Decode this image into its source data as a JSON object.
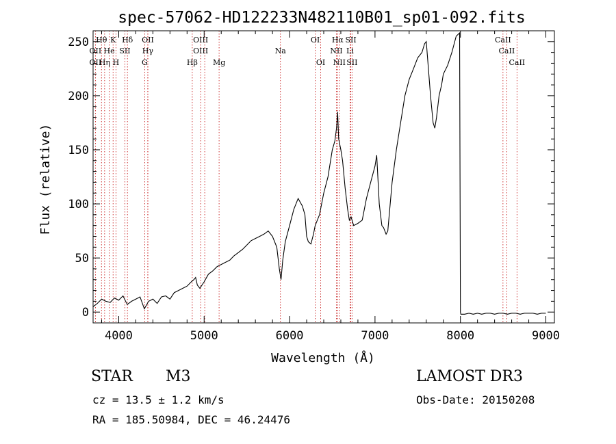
{
  "chart_data": {
    "type": "line",
    "title": "spec-57062-HD122233N482110B01_sp01-092.fits",
    "xlabel": "Wavelength (Å)",
    "ylabel": "Flux (relative)",
    "xlim": [
      3700,
      9100
    ],
    "ylim": [
      -10,
      260
    ],
    "xticks": [
      4000,
      5000,
      6000,
      7000,
      8000,
      9000
    ],
    "yticks": [
      0,
      50,
      100,
      150,
      200,
      250
    ],
    "series": [
      {
        "name": "Spectrum",
        "x": [
          3700,
          3750,
          3800,
          3850,
          3900,
          3950,
          4000,
          4050,
          4100,
          4150,
          4200,
          4250,
          4300,
          4350,
          4400,
          4450,
          4500,
          4550,
          4600,
          4650,
          4700,
          4750,
          4800,
          4850,
          4880,
          4900,
          4920,
          4950,
          5000,
          5050,
          5100,
          5150,
          5200,
          5250,
          5300,
          5350,
          5400,
          5450,
          5500,
          5550,
          5600,
          5650,
          5700,
          5750,
          5800,
          5850,
          5880,
          5900,
          5920,
          5950,
          6000,
          6050,
          6100,
          6150,
          6180,
          6200,
          6220,
          6250,
          6280,
          6300,
          6350,
          6400,
          6450,
          6500,
          6530,
          6550,
          6563,
          6575,
          6600,
          6620,
          6650,
          6680,
          6700,
          6720,
          6750,
          6800,
          6850,
          6900,
          6950,
          7000,
          7020,
          7050,
          7080,
          7100,
          7130,
          7150,
          7200,
          7250,
          7300,
          7350,
          7400,
          7450,
          7500,
          7550,
          7580,
          7600,
          7620,
          7650,
          7680,
          7700,
          7720,
          7750,
          7780,
          7800,
          7850,
          7900,
          7950,
          7990,
          8000,
          8005,
          8050,
          8100,
          8150,
          8200,
          8250,
          8300,
          8350,
          8400,
          8450,
          8500,
          8550,
          8600,
          8650,
          8700,
          8750,
          8800,
          8850,
          8900,
          8950,
          9000
        ],
        "y": [
          5,
          8,
          12,
          10,
          9,
          13,
          11,
          15,
          7,
          10,
          12,
          14,
          3,
          10,
          12,
          8,
          14,
          15,
          12,
          18,
          20,
          22,
          24,
          28,
          30,
          32,
          25,
          22,
          28,
          35,
          38,
          42,
          44,
          46,
          48,
          52,
          55,
          58,
          62,
          66,
          68,
          70,
          72,
          75,
          70,
          60,
          40,
          30,
          48,
          65,
          80,
          95,
          105,
          98,
          90,
          70,
          65,
          63,
          72,
          80,
          90,
          110,
          125,
          150,
          158,
          170,
          185,
          160,
          150,
          140,
          115,
          95,
          85,
          88,
          80,
          82,
          85,
          105,
          120,
          135,
          145,
          100,
          80,
          78,
          72,
          75,
          120,
          150,
          175,
          200,
          215,
          225,
          235,
          240,
          248,
          250,
          230,
          200,
          175,
          170,
          180,
          200,
          210,
          220,
          228,
          240,
          255,
          258,
          0,
          -2,
          -2,
          -1,
          -2,
          -1,
          -2,
          -1,
          -1,
          -2,
          -1,
          -1,
          -2,
          -1,
          -1,
          -2,
          -1,
          -1,
          -1,
          -2,
          -1,
          -1
        ]
      }
    ],
    "line_markers": [
      {
        "label": "Hθ",
        "x": 3798,
        "row": 0
      },
      {
        "label": "K",
        "x": 3934,
        "row": 0
      },
      {
        "label": "Hδ",
        "x": 4102,
        "row": 0
      },
      {
        "label": "OII",
        "x": 4341,
        "row": 0
      },
      {
        "label": "OIII",
        "x": 4959,
        "row": 0
      },
      {
        "label": "OI",
        "x": 6300,
        "row": 0
      },
      {
        "label": "Hα",
        "x": 6563,
        "row": 0
      },
      {
        "label": "SII",
        "x": 6717,
        "row": 0
      },
      {
        "label": "CaII",
        "x": 8498,
        "row": 0
      },
      {
        "label": "OII",
        "x": 3727,
        "row": 1
      },
      {
        "label": "He",
        "x": 3889,
        "row": 1
      },
      {
        "label": "SII",
        "x": 4072,
        "row": 1
      },
      {
        "label": "Hγ",
        "x": 4340,
        "row": 1
      },
      {
        "label": "OIII",
        "x": 4959,
        "row": 1
      },
      {
        "label": "Na",
        "x": 5893,
        "row": 1
      },
      {
        "label": "NII",
        "x": 6548,
        "row": 1
      },
      {
        "label": "Li",
        "x": 6708,
        "row": 1
      },
      {
        "label": "CaII",
        "x": 8542,
        "row": 1
      },
      {
        "label": "OII",
        "x": 3727,
        "row": 2
      },
      {
        "label": "Hη",
        "x": 3835,
        "row": 2
      },
      {
        "label": "H",
        "x": 3968,
        "row": 2
      },
      {
        "label": "G",
        "x": 4304,
        "row": 2
      },
      {
        "label": "Hβ",
        "x": 4861,
        "row": 2
      },
      {
        "label": "Mg",
        "x": 5175,
        "row": 2
      },
      {
        "label": "OI",
        "x": 6364,
        "row": 2
      },
      {
        "label": "NII",
        "x": 6583,
        "row": 2
      },
      {
        "label": "SII",
        "x": 6731,
        "row": 2
      },
      {
        "label": "CaII",
        "x": 8662,
        "row": 2
      }
    ],
    "marker_lines": [
      3727,
      3798,
      3835,
      3889,
      3934,
      3968,
      4072,
      4102,
      4304,
      4340,
      4341,
      4861,
      4959,
      5007,
      5175,
      5893,
      6300,
      6364,
      6548,
      6563,
      6583,
      6708,
      6717,
      6731,
      8498,
      8542,
      8662
    ],
    "colors": {
      "spectrum": "#000000",
      "markers": "#c00000"
    }
  },
  "info": {
    "object_class": "STAR",
    "subclass": "M3",
    "survey": "LAMOST DR3",
    "cz": "cz = 13.5 ± 1.2 km/s",
    "obs_date": "Obs-Date: 20150208",
    "coords": "RA = 185.50984, DEC =  46.24476"
  }
}
